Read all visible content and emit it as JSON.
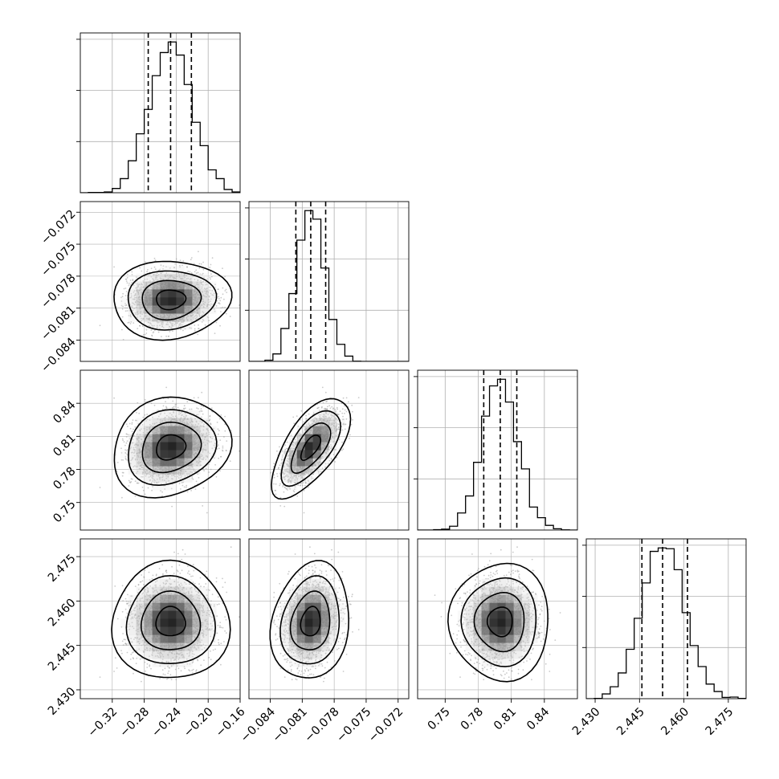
{
  "chart_data": {
    "type": "corner",
    "title": "",
    "grid": true,
    "quantiles": [
      0.16,
      0.5,
      0.84
    ],
    "contour_levels_sigma": [
      0.5,
      1.0,
      1.5,
      2.0
    ],
    "colors": {
      "line": "#000000",
      "grid": "#b0b0b0",
      "points": "#9e9e9e",
      "frame": "#000000"
    },
    "parameters": [
      {
        "mean": -0.247,
        "sd": 0.026,
        "range": [
          -0.36,
          -0.16
        ],
        "ticks": [
          -0.32,
          -0.28,
          -0.24,
          -0.2,
          -0.16
        ],
        "tick_labels": [
          "−0.32",
          "−0.28",
          "−0.24",
          "−0.20",
          "−0.16"
        ],
        "quantile_values": [
          -0.275,
          -0.247,
          -0.221
        ]
      },
      {
        "mean": -0.0802,
        "sd": 0.0013,
        "range": [
          -0.086,
          -0.071
        ],
        "ticks": [
          -0.084,
          -0.081,
          -0.078,
          -0.075,
          -0.072
        ],
        "tick_labels": [
          "−0.084",
          "−0.081",
          "−0.078",
          "−0.075",
          "−0.072"
        ],
        "quantile_values": [
          -0.0816,
          -0.0802,
          -0.0788
        ]
      },
      {
        "mean": 0.8,
        "sd": 0.016,
        "range": [
          0.725,
          0.87
        ],
        "ticks": [
          0.75,
          0.78,
          0.81,
          0.84
        ],
        "tick_labels": [
          "0.75",
          "0.78",
          "0.81",
          "0.84"
        ],
        "quantile_values": [
          0.785,
          0.8,
          0.815
        ]
      },
      {
        "mean": 2.453,
        "sd": 0.007,
        "range": [
          2.427,
          2.481
        ],
        "ticks": [
          2.43,
          2.445,
          2.46,
          2.475
        ],
        "tick_labels": [
          "2.430",
          "2.445",
          "2.460",
          "2.475"
        ],
        "quantile_values": [
          2.4458,
          2.4528,
          2.4612
        ]
      }
    ],
    "correlations": [
      [
        1.0,
        0.05,
        0.15,
        0.0
      ],
      [
        0.05,
        1.0,
        0.65,
        0.15
      ],
      [
        0.15,
        0.65,
        1.0,
        0.0
      ],
      [
        0.0,
        0.15,
        0.0,
        1.0
      ]
    ]
  }
}
